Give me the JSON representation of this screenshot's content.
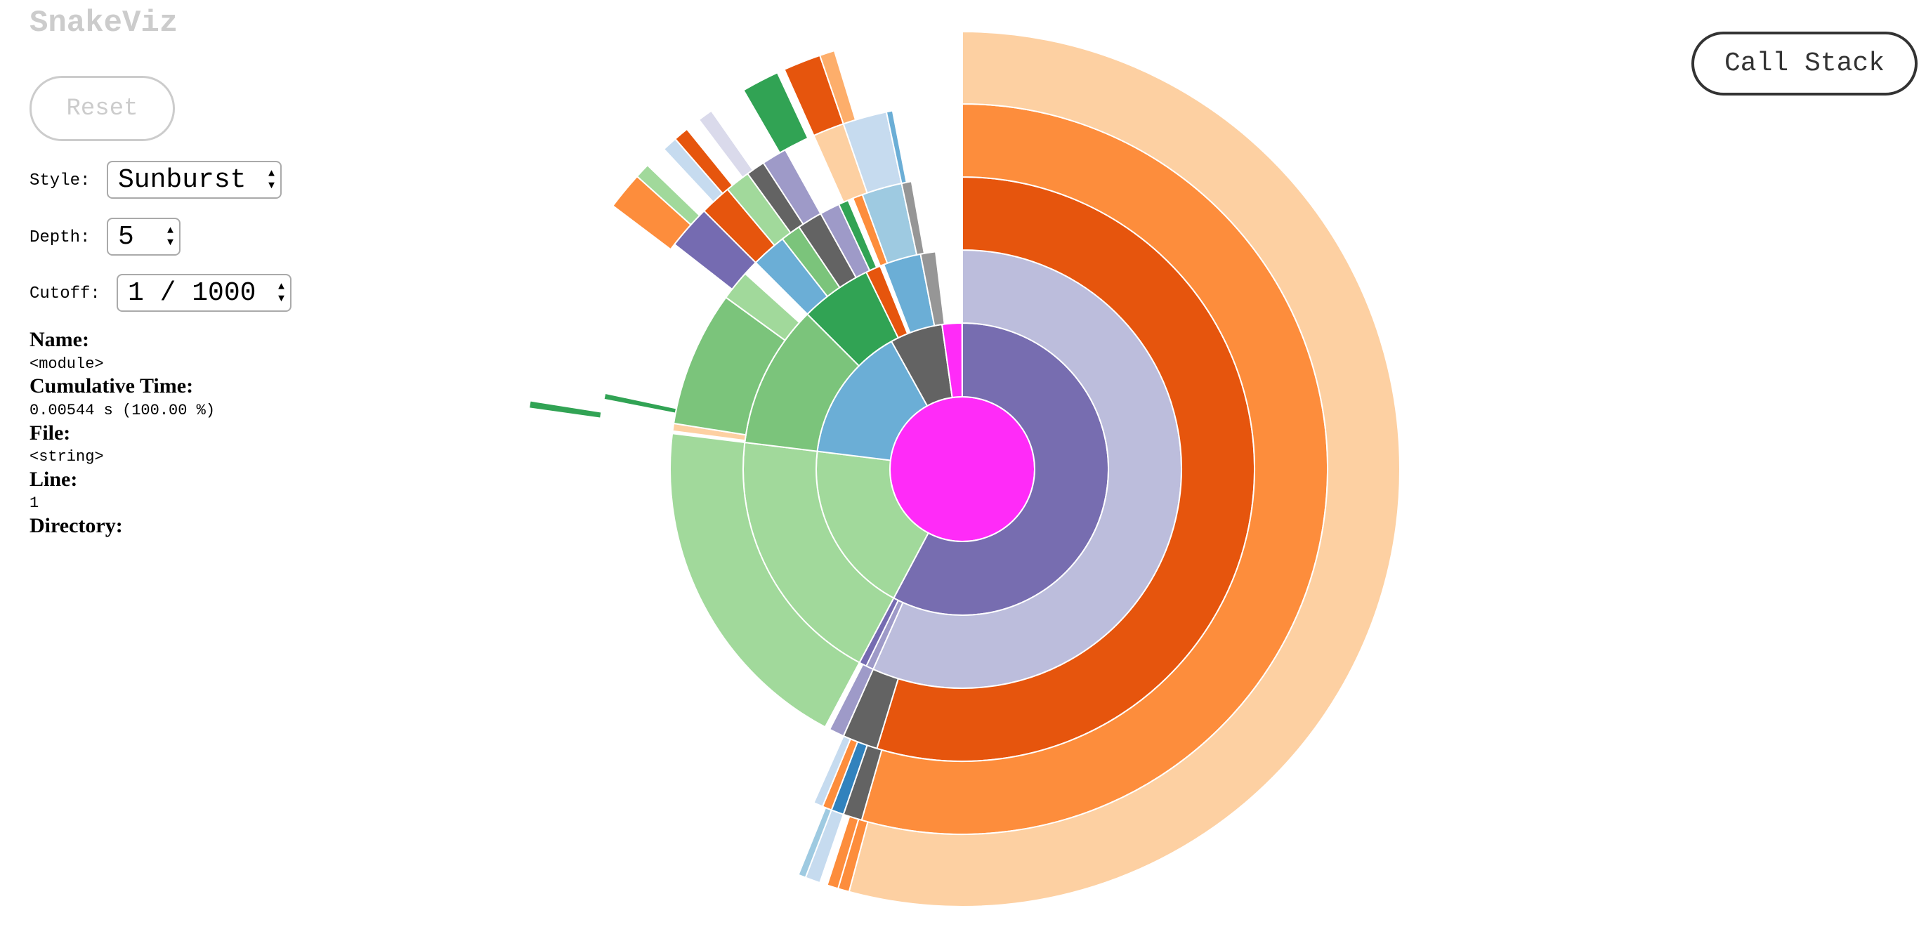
{
  "header": {
    "title": "SnakeViz",
    "reset": "Reset",
    "call_stack": "Call Stack"
  },
  "controls": {
    "style_label": "Style:",
    "style_value": "Sunburst",
    "depth_label": "Depth:",
    "depth_value": "5",
    "cutoff_label": "Cutoff:",
    "cutoff_value": "1 / 1000"
  },
  "info": {
    "name_label": "Name:",
    "name_value": "<module>",
    "time_label": "Cumulative Time:",
    "time_value": "0.00544 s (100.00 %)",
    "file_label": "File:",
    "file_value": "<string>",
    "line_label": "Line:",
    "line_value": "1",
    "directory_label": "Directory:"
  }
}
